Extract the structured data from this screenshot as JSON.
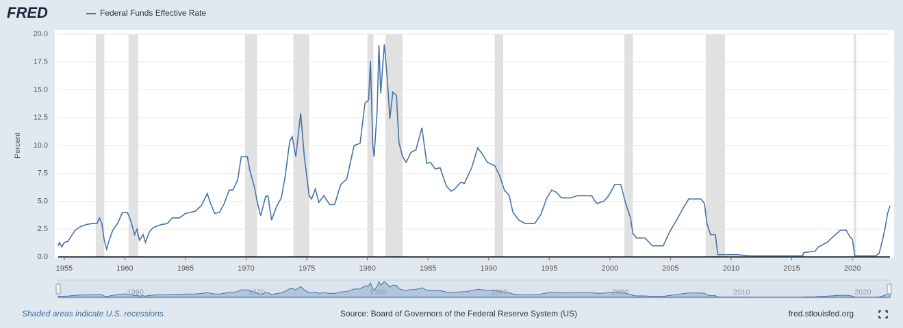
{
  "chart_data": {
    "type": "line",
    "logo": "FRED",
    "ylabel": "Percent",
    "footnote": "Shaded areas indicate U.S. recessions.",
    "source": "Source: Board of Governors of the Federal Reserve System (US)",
    "site": "fred.stlouisfed.org",
    "xlim": [
      1954.5,
      2023.1
    ],
    "ylim": [
      0,
      20
    ],
    "xticks": [
      1955,
      1960,
      1965,
      1970,
      1975,
      1980,
      1985,
      1990,
      1995,
      2000,
      2005,
      2010,
      2015,
      2020
    ],
    "yticks": [
      {
        "value": 0,
        "label": "0.0"
      },
      2.5,
      {
        "value": 5,
        "label": "5.0"
      },
      7.5,
      {
        "value": 10,
        "label": "10.0"
      },
      12.5,
      {
        "value": 15,
        "label": "15.0"
      },
      17.5,
      {
        "value": 20,
        "label": "20.0"
      }
    ],
    "navigator_xticks": [
      1960,
      1970,
      1980,
      1990,
      2000,
      2010,
      2020
    ],
    "grid": true,
    "recessions": [
      [
        1957.6,
        1958.3
      ],
      [
        1960.3,
        1961.1
      ],
      [
        1969.9,
        1970.9
      ],
      [
        1973.9,
        1975.2
      ],
      [
        1980.0,
        1980.5
      ],
      [
        1981.5,
        1982.9
      ],
      [
        1990.5,
        1991.2
      ],
      [
        2001.2,
        2001.9
      ],
      [
        2007.9,
        2009.5
      ],
      [
        2020.1,
        2020.3
      ]
    ],
    "x": [
      1954.5,
      1954.6,
      1954.8,
      1955.0,
      1955.3,
      1955.6,
      1955.9,
      1956.3,
      1956.8,
      1957.3,
      1957.7,
      1957.9,
      1958.1,
      1958.3,
      1958.5,
      1958.7,
      1959.0,
      1959.4,
      1959.8,
      1960.2,
      1960.5,
      1960.8,
      1961.0,
      1961.2,
      1961.5,
      1961.7,
      1962.0,
      1962.3,
      1962.7,
      1963.0,
      1963.5,
      1963.9,
      1964.5,
      1965.0,
      1965.8,
      1966.3,
      1966.8,
      1967.0,
      1967.4,
      1967.8,
      1968.2,
      1968.6,
      1968.9,
      1969.3,
      1969.6,
      1969.9,
      1970.1,
      1970.3,
      1970.7,
      1970.9,
      1971.2,
      1971.6,
      1971.8,
      1972.1,
      1972.5,
      1972.9,
      1973.2,
      1973.6,
      1973.8,
      1974.1,
      1974.5,
      1974.8,
      1975.2,
      1975.4,
      1975.7,
      1976.0,
      1976.4,
      1976.9,
      1977.3,
      1977.8,
      1978.3,
      1978.9,
      1979.4,
      1979.8,
      1980.1,
      1980.25,
      1980.45,
      1980.55,
      1980.8,
      1980.95,
      1981.1,
      1981.4,
      1981.65,
      1981.85,
      1982.1,
      1982.4,
      1982.6,
      1982.9,
      1983.2,
      1983.6,
      1984.0,
      1984.5,
      1984.9,
      1985.2,
      1985.6,
      1986.0,
      1986.5,
      1986.9,
      1987.2,
      1987.7,
      1988.0,
      1988.6,
      1989.1,
      1989.5,
      1989.9,
      1990.5,
      1990.9,
      1991.3,
      1991.7,
      1992.0,
      1992.5,
      1993.0,
      1993.8,
      1994.3,
      1994.8,
      1995.2,
      1995.6,
      1996.0,
      1996.8,
      1997.3,
      1998.5,
      1998.9,
      1999.5,
      1999.9,
      2000.4,
      2000.9,
      2001.3,
      2001.7,
      2001.9,
      2002.2,
      2002.9,
      2003.5,
      2004.4,
      2004.9,
      2005.5,
      2006.0,
      2006.5,
      2007.5,
      2007.8,
      2008.0,
      2008.3,
      2008.7,
      2008.9,
      2009.5,
      2010.5,
      2011.5,
      2013.0,
      2015.9,
      2016.0,
      2016.9,
      2017.2,
      2017.9,
      2018.5,
      2019.0,
      2019.5,
      2019.8,
      2020.0,
      2020.2,
      2021.9,
      2022.2,
      2022.5,
      2022.7,
      2022.9,
      2023.1
    ],
    "series": [
      {
        "name": "Federal Funds Effective Rate",
        "color": "#4572a7",
        "values": [
          1.0,
          1.3,
          0.9,
          1.3,
          1.4,
          1.9,
          2.4,
          2.7,
          2.9,
          3.0,
          3.0,
          3.5,
          3.0,
          1.5,
          0.7,
          1.5,
          2.4,
          3.0,
          4.0,
          4.0,
          3.2,
          2.0,
          2.5,
          1.5,
          2.0,
          1.3,
          2.2,
          2.6,
          2.8,
          2.9,
          3.0,
          3.5,
          3.5,
          3.9,
          4.1,
          4.6,
          5.7,
          5.0,
          3.9,
          4.0,
          4.8,
          6.0,
          6.0,
          6.9,
          9.0,
          9.0,
          9.0,
          7.8,
          6.2,
          5.0,
          3.7,
          5.4,
          5.5,
          3.3,
          4.5,
          5.3,
          7.1,
          10.4,
          10.8,
          9.0,
          12.9,
          9.0,
          5.5,
          5.2,
          6.1,
          4.9,
          5.5,
          4.7,
          4.7,
          6.5,
          7.0,
          10.0,
          10.2,
          13.8,
          14.1,
          17.6,
          10.0,
          9.0,
          13.0,
          19.0,
          14.7,
          19.1,
          15.9,
          12.4,
          14.8,
          14.5,
          10.3,
          9.0,
          8.5,
          9.4,
          9.6,
          11.6,
          8.4,
          8.5,
          7.9,
          8.0,
          6.4,
          5.9,
          6.1,
          6.7,
          6.6,
          8.0,
          9.8,
          9.2,
          8.5,
          8.2,
          7.3,
          6.0,
          5.5,
          4.0,
          3.3,
          3.0,
          3.0,
          3.8,
          5.3,
          6.0,
          5.8,
          5.3,
          5.3,
          5.5,
          5.5,
          4.8,
          5.0,
          5.5,
          6.5,
          6.5,
          4.8,
          3.5,
          2.1,
          1.7,
          1.7,
          1.0,
          1.0,
          2.2,
          3.3,
          4.3,
          5.2,
          5.2,
          4.8,
          3.0,
          2.0,
          2.0,
          0.2,
          0.2,
          0.2,
          0.1,
          0.1,
          0.1,
          0.4,
          0.5,
          0.9,
          1.3,
          1.9,
          2.4,
          2.4,
          1.8,
          1.6,
          0.1,
          0.1,
          0.3,
          1.6,
          2.6,
          3.9,
          4.6
        ]
      }
    ]
  }
}
